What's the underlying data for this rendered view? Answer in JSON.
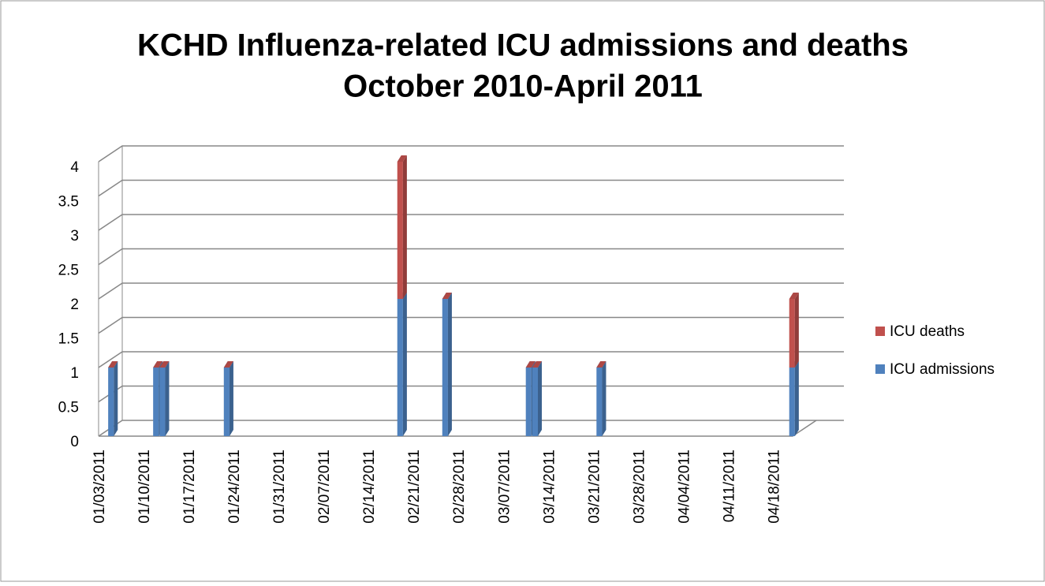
{
  "chart_data": {
    "type": "bar3d_stacked",
    "title": [
      "KCHD  Influenza-related ICU admissions and deaths",
      "October 2010-April 2011"
    ],
    "x": [
      "2011-01-04",
      "2011-01-11",
      "2011-01-12",
      "2011-01-22",
      "2011-02-18",
      "2011-02-25",
      "2011-03-10",
      "2011-03-11",
      "2011-03-21",
      "2011-04-20"
    ],
    "series": [
      {
        "name": "ICU admissions",
        "color": "#4f81bd",
        "values": [
          1,
          1,
          1,
          1,
          2,
          2,
          1,
          1,
          1,
          1
        ]
      },
      {
        "name": "ICU deaths",
        "color": "#c0504d",
        "values": [
          0,
          0,
          0,
          0,
          2,
          0,
          0,
          0,
          0,
          1
        ]
      }
    ],
    "xlim": [
      "2011-01-03",
      "2011-04-22"
    ],
    "xticks": [
      {
        "value": "2011-01-03",
        "label": "01/03/2011"
      },
      {
        "value": "2011-01-10",
        "label": "01/10/2011"
      },
      {
        "value": "2011-01-17",
        "label": "01/17/2011"
      },
      {
        "value": "2011-01-24",
        "label": "01/24/2011"
      },
      {
        "value": "2011-01-31",
        "label": "01/31/2011"
      },
      {
        "value": "2011-02-07",
        "label": "02/07/2011"
      },
      {
        "value": "2011-02-14",
        "label": "02/14/2011"
      },
      {
        "value": "2011-02-21",
        "label": "02/21/2011"
      },
      {
        "value": "2011-02-28",
        "label": "02/28/2011"
      },
      {
        "value": "2011-03-07",
        "label": "03/07/2011"
      },
      {
        "value": "2011-03-14",
        "label": "03/14/2011"
      },
      {
        "value": "2011-03-21",
        "label": "03/21/2011"
      },
      {
        "value": "2011-03-28",
        "label": "03/28/2011"
      },
      {
        "value": "2011-04-04",
        "label": "04/04/2011"
      },
      {
        "value": "2011-04-11",
        "label": "04/11/2011"
      },
      {
        "value": "2011-04-18",
        "label": "04/18/2011"
      }
    ],
    "ylim": [
      0,
      4
    ],
    "yticks": [
      0,
      0.5,
      1,
      1.5,
      2,
      2.5,
      3,
      3.5,
      4
    ],
    "grid": true,
    "legend": "right"
  }
}
